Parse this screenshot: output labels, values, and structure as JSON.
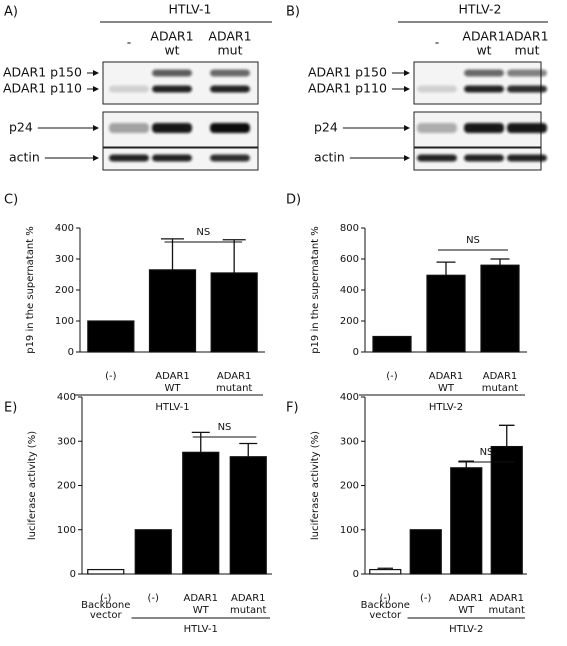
{
  "blots": [
    {
      "label": "A)",
      "title": "HTLV-1",
      "lanes": [
        [
          "-"
        ],
        [
          "ADAR1",
          "wt"
        ],
        [
          "ADAR1",
          "mut"
        ]
      ],
      "rows": [
        "ADAR1 p150",
        "ADAR1 p110",
        "p24",
        "actin"
      ]
    },
    {
      "label": "B)",
      "title": "HTLV-2",
      "lanes": [
        [
          "-"
        ],
        [
          "ADAR1",
          "wt"
        ],
        [
          "ADAR1",
          "mut"
        ]
      ],
      "rows": [
        "ADAR1 p150",
        "ADAR1 p110",
        "p24",
        "actin"
      ]
    }
  ],
  "chart_data": [
    {
      "type": "bar",
      "label": "C)",
      "y_label": "p19 in the supernatant  %",
      "categories": [
        [
          "(-)"
        ],
        [
          "ADAR1",
          "WT"
        ],
        [
          "ADAR1",
          "mutant"
        ]
      ],
      "values": [
        100,
        265,
        255
      ],
      "errors": [
        null,
        100,
        107
      ],
      "color": "#000000",
      "ylim": [
        0,
        400
      ],
      "yticks": [
        0,
        100,
        200,
        300,
        400
      ],
      "groups": [
        {
          "label": [
            "HTLV-1"
          ],
          "span": [
            0,
            2
          ]
        }
      ],
      "annotations": [
        {
          "text": "NS",
          "span": [
            1,
            2
          ]
        }
      ]
    },
    {
      "type": "bar",
      "label": "D)",
      "y_label": "p19 in the supernatant  %",
      "categories": [
        [
          "(-)"
        ],
        [
          "ADAR1",
          "WT"
        ],
        [
          "ADAR1",
          "mutant"
        ]
      ],
      "values": [
        100,
        495,
        560
      ],
      "errors": [
        null,
        85,
        40
      ],
      "color": "#000000",
      "ylim": [
        0,
        800
      ],
      "yticks": [
        0,
        200,
        400,
        600,
        800
      ],
      "groups": [
        {
          "label": [
            "HTLV-2"
          ],
          "span": [
            0,
            2
          ]
        }
      ],
      "annotations": [
        {
          "text": "NS",
          "span": [
            1,
            2
          ]
        }
      ]
    },
    {
      "type": "bar",
      "label": "E)",
      "y_label": "luciferase activity  (%)",
      "categories": [
        [
          "(-)"
        ],
        [
          "(-)"
        ],
        [
          "ADAR1",
          "WT"
        ],
        [
          "ADAR1",
          "mutant"
        ]
      ],
      "values": [
        10,
        100,
        275,
        265
      ],
      "errors": [
        null,
        null,
        45,
        30
      ],
      "colors": [
        "#ffffff",
        "#000000",
        "#000000",
        "#000000"
      ],
      "ylim": [
        0,
        400
      ],
      "yticks": [
        0,
        100,
        200,
        300,
        400
      ],
      "groups": [
        {
          "label": [
            "Backbone",
            "vector"
          ],
          "span": [
            0,
            0
          ]
        },
        {
          "label": [
            "HTLV-1"
          ],
          "span": [
            1,
            3
          ]
        }
      ],
      "annotations": [
        {
          "text": "NS",
          "span": [
            2,
            3
          ]
        }
      ]
    },
    {
      "type": "bar",
      "label": "F)",
      "y_label": "luciferase activity  (%)",
      "categories": [
        [
          "(-)"
        ],
        [
          "(-)"
        ],
        [
          "ADAR1",
          "WT"
        ],
        [
          "ADAR1",
          "mutant"
        ]
      ],
      "values": [
        10,
        100,
        240,
        288
      ],
      "errors": [
        3,
        null,
        15,
        48
      ],
      "colors": [
        "#ffffff",
        "#000000",
        "#000000",
        "#000000"
      ],
      "ylim": [
        0,
        400
      ],
      "yticks": [
        0,
        100,
        200,
        300,
        400
      ],
      "groups": [
        {
          "label": [
            "Backbone",
            "vector"
          ],
          "span": [
            0,
            0
          ]
        },
        {
          "label": [
            "HTLV-2"
          ],
          "span": [
            1,
            3
          ]
        }
      ],
      "annotations": [
        {
          "text": "NS",
          "span": [
            2,
            3
          ]
        }
      ]
    }
  ]
}
